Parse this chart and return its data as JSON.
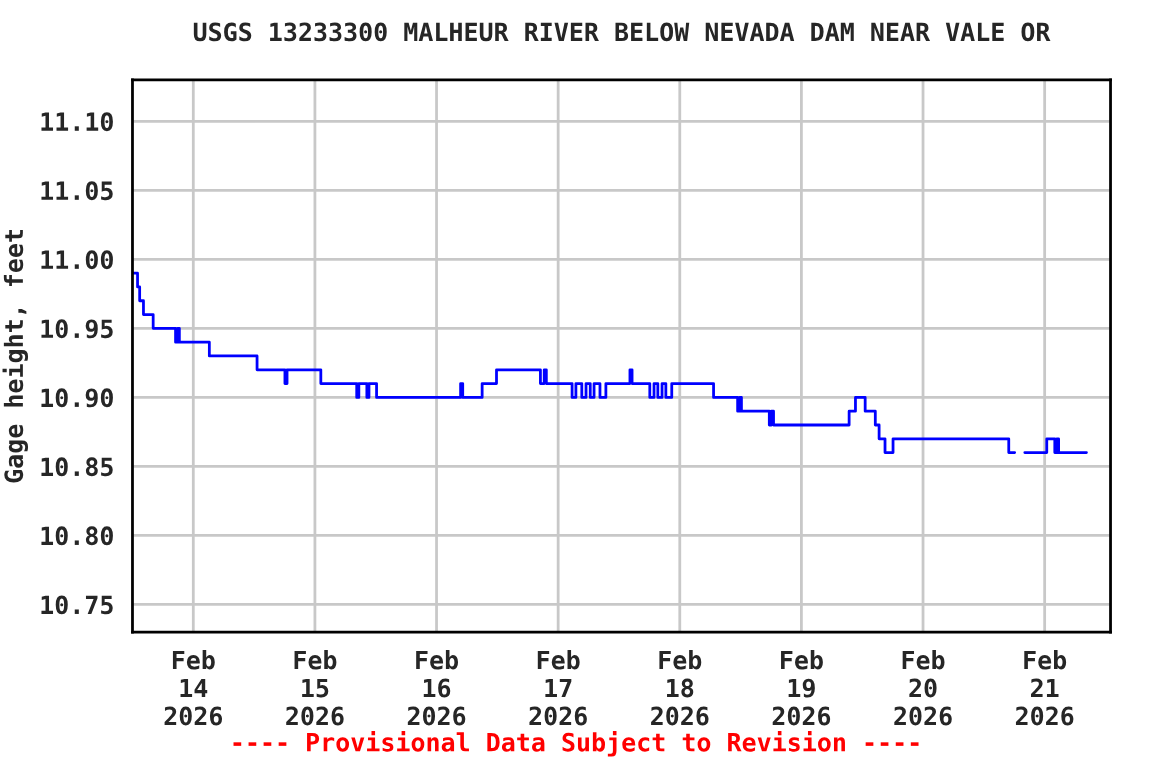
{
  "chart_data": {
    "type": "step",
    "title": "USGS 13233300 MALHEUR RIVER BELOW NEVADA DAM NEAR VALE OR",
    "ylabel": "Gage height, feet",
    "annotations": [
      "---- Provisional Data Subject to Revision ----"
    ],
    "x": [
      "2026-02-13T12:15",
      "2026-02-13T13:00",
      "2026-02-13T13:25",
      "2026-02-13T14:10",
      "2026-02-13T16:05",
      "2026-02-13T20:30",
      "2026-02-13T20:55",
      "2026-02-13T21:15",
      "2026-02-14T03:10",
      "2026-02-14T12:35",
      "2026-02-14T18:05",
      "2026-02-14T18:30",
      "2026-02-15T01:10",
      "2026-02-15T08:15",
      "2026-02-15T08:40",
      "2026-02-15T10:15",
      "2026-02-15T10:40",
      "2026-02-15T12:10",
      "2026-02-16T04:45",
      "2026-02-16T05:10",
      "2026-02-16T09:00",
      "2026-02-16T11:50",
      "2026-02-16T20:30",
      "2026-02-16T21:15",
      "2026-02-16T21:40",
      "2026-02-17T02:45",
      "2026-02-17T03:30",
      "2026-02-17T04:40",
      "2026-02-17T05:30",
      "2026-02-17T06:20",
      "2026-02-17T07:05",
      "2026-02-17T08:15",
      "2026-02-17T09:25",
      "2026-02-17T14:10",
      "2026-02-17T14:35",
      "2026-02-17T18:05",
      "2026-02-17T18:55",
      "2026-02-17T19:40",
      "2026-02-17T20:30",
      "2026-02-17T21:15",
      "2026-02-17T22:25",
      "2026-02-18T06:40",
      "2026-02-18T11:25",
      "2026-02-18T11:50",
      "2026-02-18T12:10",
      "2026-02-18T17:40",
      "2026-02-18T18:05",
      "2026-02-18T18:30",
      "2026-02-19T09:25",
      "2026-02-19T10:40",
      "2026-02-19T12:35",
      "2026-02-19T14:35",
      "2026-02-19T15:20",
      "2026-02-19T16:30",
      "2026-02-19T18:05",
      "2026-02-20T16:55",
      "2026-02-20T17:40",
      "2026-02-20T18:05",
      "2026-02-20T20:05",
      "2026-02-21T00:25",
      "2026-02-21T02:00",
      "2026-02-21T02:25",
      "2026-02-21T02:45",
      "2026-02-21T08:15"
    ],
    "series": [
      {
        "color": "#0000ff",
        "values": [
          10.99,
          10.98,
          10.97,
          10.96,
          10.95,
          10.94,
          10.95,
          10.94,
          10.93,
          10.92,
          10.91,
          10.92,
          10.91,
          10.9,
          10.91,
          10.9,
          10.91,
          10.9,
          10.91,
          10.9,
          10.91,
          10.92,
          10.91,
          10.92,
          10.91,
          10.9,
          10.91,
          10.9,
          10.91,
          10.9,
          10.91,
          10.9,
          10.91,
          10.92,
          10.91,
          10.9,
          10.91,
          10.9,
          10.91,
          10.9,
          10.91,
          10.9,
          10.89,
          10.9,
          10.89,
          10.88,
          10.89,
          10.88,
          10.89,
          10.9,
          10.89,
          10.88,
          10.87,
          10.86,
          10.87,
          10.86,
          10.86,
          null,
          10.86,
          10.87,
          10.86,
          10.87,
          10.86,
          10.86
        ]
      }
    ],
    "xlim": [
      "2026-02-13T12:00",
      "2026-02-21T13:00"
    ],
    "xticks": [
      {
        "value": "2026-02-14",
        "label": "Feb\n14\n2026"
      },
      {
        "value": "2026-02-15",
        "label": "Feb\n15\n2026"
      },
      {
        "value": "2026-02-16",
        "label": "Feb\n16\n2026"
      },
      {
        "value": "2026-02-17",
        "label": "Feb\n17\n2026"
      },
      {
        "value": "2026-02-18",
        "label": "Feb\n18\n2026"
      },
      {
        "value": "2026-02-19",
        "label": "Feb\n19\n2026"
      },
      {
        "value": "2026-02-20",
        "label": "Feb\n20\n2026"
      },
      {
        "value": "2026-02-21",
        "label": "Feb\n21\n2026"
      }
    ],
    "ylim": [
      10.73,
      11.13
    ],
    "yticks": [
      {
        "value": 10.75,
        "label": "10.75"
      },
      {
        "value": 10.8,
        "label": "10.80"
      },
      {
        "value": 10.85,
        "label": "10.85"
      },
      {
        "value": 10.9,
        "label": "10.90"
      },
      {
        "value": 10.95,
        "label": "10.95"
      },
      {
        "value": 11.0,
        "label": "11.00"
      },
      {
        "value": 11.05,
        "label": "11.05"
      },
      {
        "value": 11.1,
        "label": "11.10"
      }
    ],
    "grid": true,
    "legend": false,
    "marker": "none",
    "line_style": "solid"
  }
}
